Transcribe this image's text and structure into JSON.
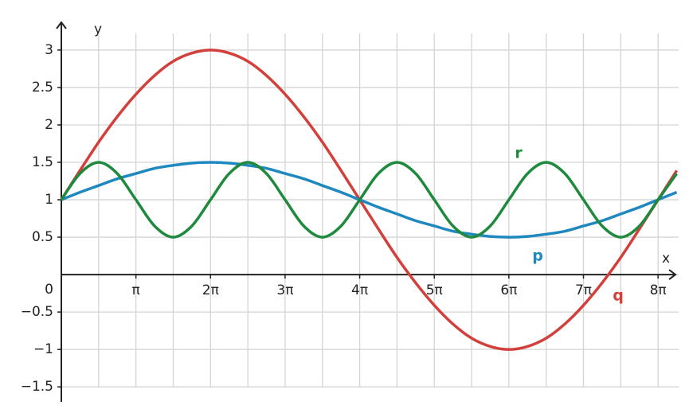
{
  "chart_data": {
    "type": "line",
    "x_label": "x",
    "y_label": "y",
    "x": [
      0,
      0.785,
      1.571,
      2.356,
      3.142,
      3.927,
      4.712,
      5.498,
      6.283,
      7.069,
      7.854,
      8.639,
      9.425,
      10.21,
      10.996,
      11.781,
      12.566,
      13.352,
      14.137,
      14.923,
      15.708,
      16.493,
      17.279,
      18.064,
      18.85,
      19.635,
      20.42,
      21.206,
      21.991,
      22.777,
      23.562,
      24.347,
      25.133,
      25.918
    ],
    "series": [
      {
        "name": "q",
        "color": "#d2403c",
        "values": [
          1,
          1.39,
          1.77,
          2.11,
          2.41,
          2.66,
          2.85,
          2.96,
          3,
          2.96,
          2.85,
          2.66,
          2.41,
          2.11,
          1.77,
          1.39,
          1,
          0.61,
          0.23,
          -0.11,
          -0.41,
          -0.66,
          -0.85,
          -0.96,
          -1,
          -0.96,
          -0.85,
          -0.66,
          -0.41,
          -0.11,
          0.23,
          0.61,
          1,
          1.39
        ]
      },
      {
        "name": "p",
        "color": "#1e88bf",
        "values": [
          1,
          1.1,
          1.19,
          1.28,
          1.35,
          1.42,
          1.46,
          1.49,
          1.5,
          1.49,
          1.46,
          1.42,
          1.35,
          1.28,
          1.19,
          1.1,
          1,
          0.9,
          0.81,
          0.72,
          0.65,
          0.58,
          0.54,
          0.51,
          0.5,
          0.51,
          0.54,
          0.58,
          0.65,
          0.72,
          0.81,
          0.9,
          1,
          1.1
        ]
      },
      {
        "name": "r",
        "color": "#1f8a3e",
        "values": [
          1,
          1.35,
          1.5,
          1.35,
          1,
          0.65,
          0.5,
          0.65,
          1,
          1.35,
          1.5,
          1.35,
          1,
          0.65,
          0.5,
          0.65,
          1,
          1.35,
          1.5,
          1.35,
          1,
          0.65,
          0.5,
          0.65,
          1,
          1.35,
          1.5,
          1.35,
          1,
          0.65,
          0.5,
          0.65,
          1,
          1.35
        ]
      }
    ],
    "xlim": [
      0,
      26.0
    ],
    "ylim": [
      -1.7,
      3.35
    ],
    "xticks": [
      {
        "value": 3.1416,
        "label": "π"
      },
      {
        "value": 6.2832,
        "label": "2π"
      },
      {
        "value": 9.4248,
        "label": "3π"
      },
      {
        "value": 12.5664,
        "label": "4π"
      },
      {
        "value": 15.708,
        "label": "5π"
      },
      {
        "value": 18.8496,
        "label": "6π"
      },
      {
        "value": 21.9911,
        "label": "7π"
      },
      {
        "value": 25.1327,
        "label": "8π"
      }
    ],
    "yticks": [
      {
        "value": -1.5,
        "label": "−1.5"
      },
      {
        "value": -1,
        "label": "−1"
      },
      {
        "value": -0.5,
        "label": "−0.5"
      },
      0,
      0.5,
      1,
      1.5,
      2,
      2.5,
      3
    ],
    "grid": true
  }
}
